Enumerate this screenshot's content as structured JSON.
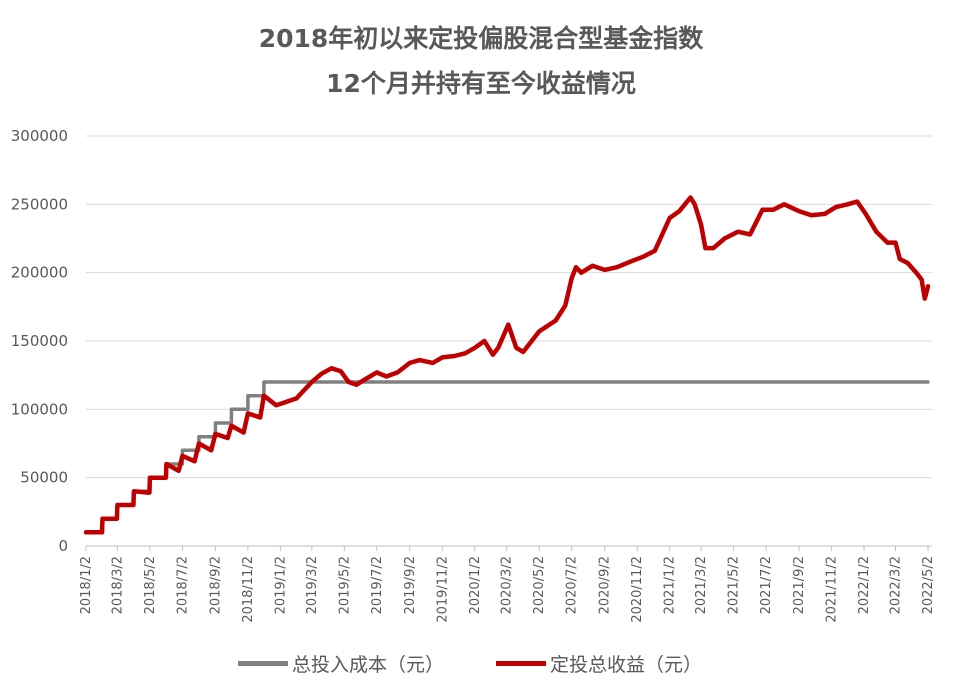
{
  "title": "2018年初以来定投偏股混合型基金指数",
  "subtitle": "12个月并持有至今收益情况",
  "chart_data": {
    "type": "line",
    "title": "2018年初以来定投偏股混合型基金指数 12个月并持有至今收益情况",
    "ylim": [
      0,
      300000
    ],
    "yticks": [
      0,
      50000,
      100000,
      150000,
      200000,
      250000,
      300000
    ],
    "ytick_labels": [
      "0",
      "50000",
      "100000",
      "150000",
      "200000",
      "250000",
      "300000"
    ],
    "xlim": [
      "2018/1/2",
      "2022/5/2"
    ],
    "xtick_labels": [
      "2018/1/2",
      "2018/3/2",
      "2018/5/2",
      "2018/7/2",
      "2018/9/2",
      "2018/11/2",
      "2019/1/2",
      "2019/3/2",
      "2019/5/2",
      "2019/7/2",
      "2019/9/2",
      "2019/11/2",
      "2020/1/2",
      "2020/3/2",
      "2020/5/2",
      "2020/7/2",
      "2020/9/2",
      "2020/11/2",
      "2021/1/2",
      "2021/3/2",
      "2021/5/2",
      "2021/7/2",
      "2021/9/2",
      "2021/11/2",
      "2022/1/2",
      "2022/3/2",
      "2022/5/2"
    ],
    "grid": true,
    "legend": "bottom",
    "series": [
      {
        "name": "总投入成本（元）",
        "color": "#808080",
        "x": [
          "2018/1/2",
          "2018/2/2",
          "2018/2/2",
          "2018/3/2",
          "2018/3/2",
          "2018/4/2",
          "2018/4/2",
          "2018/5/2",
          "2018/5/2",
          "2018/6/2",
          "2018/6/2",
          "2018/7/2",
          "2018/7/2",
          "2018/8/2",
          "2018/8/2",
          "2018/9/2",
          "2018/9/2",
          "2018/10/2",
          "2018/10/2",
          "2018/11/2",
          "2018/11/2",
          "2018/12/2",
          "2018/12/2",
          "2022/5/2"
        ],
        "values": [
          10000,
          10000,
          20000,
          20000,
          30000,
          30000,
          40000,
          40000,
          50000,
          50000,
          60000,
          60000,
          70000,
          70000,
          80000,
          80000,
          90000,
          90000,
          100000,
          100000,
          110000,
          110000,
          120000,
          120000
        ]
      },
      {
        "name": "定投总收益（元）",
        "color": "#c00000",
        "x": [
          "2018/1/2",
          "2018/2/1",
          "2018/2/2",
          "2018/3/1",
          "2018/3/2",
          "2018/4/1",
          "2018/4/2",
          "2018/5/1",
          "2018/5/2",
          "2018/6/1",
          "2018/6/2",
          "2018/6/25",
          "2018/7/2",
          "2018/7/25",
          "2018/8/2",
          "2018/8/25",
          "2018/9/2",
          "2018/9/25",
          "2018/10/2",
          "2018/10/25",
          "2018/11/2",
          "2018/11/25",
          "2018/12/2",
          "2018/12/25",
          "2019/1/2",
          "2019/2/1",
          "2019/3/2",
          "2019/3/20",
          "2019/4/8",
          "2019/4/25",
          "2019/5/10",
          "2019/5/25",
          "2019/6/10",
          "2019/7/2",
          "2019/7/20",
          "2019/8/10",
          "2019/9/2",
          "2019/9/20",
          "2019/10/15",
          "2019/11/2",
          "2019/11/25",
          "2019/12/15",
          "2020/1/2",
          "2020/1/20",
          "2020/2/5",
          "2020/2/15",
          "2020/3/5",
          "2020/3/20",
          "2020/4/2",
          "2020/5/2",
          "2020/6/2",
          "2020/6/20",
          "2020/7/2",
          "2020/7/10",
          "2020/7/20",
          "2020/8/10",
          "2020/9/2",
          "2020/9/25",
          "2020/10/20",
          "2020/11/15",
          "2020/12/5",
          "2021/1/2",
          "2021/1/20",
          "2021/2/10",
          "2021/2/18",
          "2021/3/2",
          "2021/3/10",
          "2021/3/25",
          "2021/4/15",
          "2021/5/10",
          "2021/6/2",
          "2021/6/25",
          "2021/7/15",
          "2021/8/5",
          "2021/9/2",
          "2021/9/25",
          "2021/10/20",
          "2021/11/10",
          "2021/12/2",
          "2021/12/20",
          "2022/1/5",
          "2022/1/25",
          "2022/2/15",
          "2022/3/2",
          "2022/3/10",
          "2022/3/25",
          "2022/4/10",
          "2022/4/20",
          "2022/4/26",
          "2022/5/2"
        ],
        "values": [
          10000,
          10000,
          20000,
          20000,
          30000,
          30000,
          40000,
          39000,
          50000,
          50000,
          60000,
          55000,
          66000,
          62000,
          75000,
          70000,
          82000,
          79000,
          88000,
          83000,
          97000,
          94000,
          110000,
          103000,
          104000,
          108000,
          120000,
          126000,
          130000,
          128000,
          120000,
          118000,
          122000,
          127000,
          124000,
          127000,
          134000,
          136000,
          134000,
          138000,
          139000,
          141000,
          145000,
          150000,
          140000,
          145000,
          162000,
          145000,
          142000,
          157000,
          165000,
          176000,
          196000,
          204000,
          200000,
          205000,
          202000,
          204000,
          208000,
          212000,
          216000,
          240000,
          245000,
          255000,
          250000,
          235000,
          218000,
          218000,
          225000,
          230000,
          228000,
          246000,
          246000,
          250000,
          245000,
          242000,
          243000,
          248000,
          250000,
          252000,
          243000,
          230000,
          222000,
          222000,
          210000,
          207000,
          200000,
          195000,
          181000,
          190000
        ]
      }
    ]
  }
}
